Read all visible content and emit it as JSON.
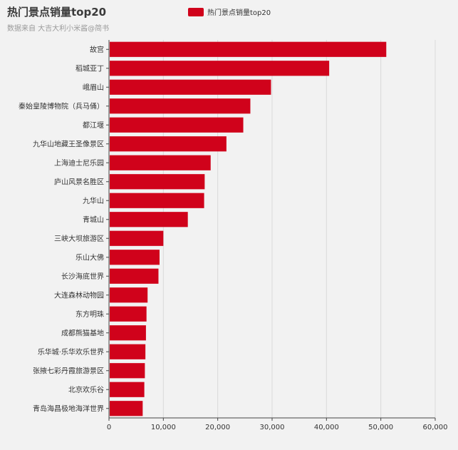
{
  "colors": {
    "bar": "#d0021b",
    "grid": "#d9d9d9",
    "axis": "#444444"
  },
  "legend": {
    "label": "热门景点销量top20"
  },
  "chart_data": {
    "type": "bar",
    "orientation": "horizontal",
    "title": "热门景点销量top20",
    "subtitle": "数据来自 大吉大利小米酱@简书",
    "categories": [
      "故宫",
      "稻城亚丁",
      "峨眉山",
      "秦始皇陵博物院（兵马俑）",
      "都江堰",
      "九华山地藏王圣像景区",
      "上海迪士尼乐园",
      "庐山风景名胜区",
      "九华山",
      "青城山",
      "三峡大坝旅游区",
      "乐山大佛",
      "长沙海底世界",
      "大连森林动物园",
      "东方明珠",
      "成都熊猫基地",
      "乐华城·乐华欢乐世界",
      "张掖七彩丹霞旅游景区",
      "北京欢乐谷",
      "青岛海昌极地海洋世界"
    ],
    "series": [
      {
        "name": "热门景点销量top20",
        "values": [
          51000,
          40500,
          29800,
          26000,
          24700,
          21600,
          18700,
          17600,
          17500,
          14500,
          10000,
          9300,
          9100,
          7100,
          6900,
          6800,
          6700,
          6600,
          6500,
          6200
        ]
      }
    ],
    "xlim": [
      0,
      60000
    ],
    "xticks": [
      "0",
      "10,000",
      "20,000",
      "30,000",
      "40,000",
      "50,000",
      "60,000"
    ],
    "grid": true,
    "legend_position": "top-center"
  }
}
